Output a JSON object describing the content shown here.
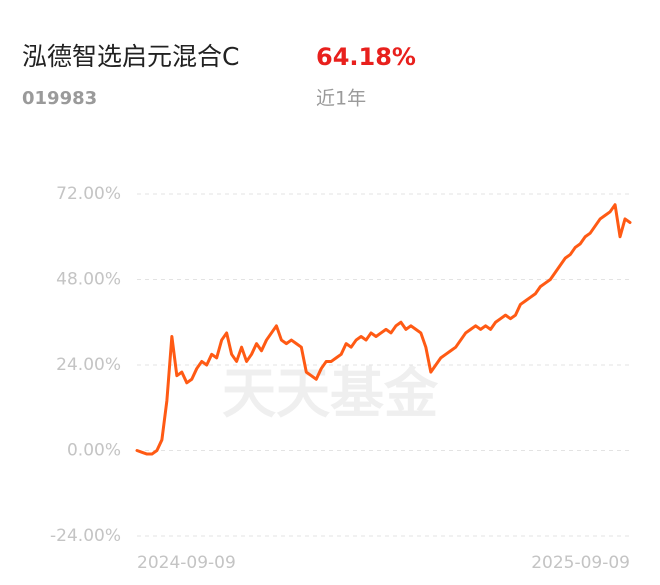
{
  "header": {
    "title": "泓德智选启元混合C",
    "return": "64.18%",
    "code": "019983",
    "period": "近1年"
  },
  "chart_data": {
    "type": "line",
    "watermark": "天天基金",
    "categories": [
      "2024-09-09",
      null,
      null,
      null,
      null,
      null,
      null,
      null,
      null,
      null,
      null,
      null,
      null,
      null,
      null,
      null,
      null,
      null,
      null,
      null,
      null,
      null,
      null,
      null,
      null,
      null,
      null,
      null,
      null,
      null,
      null,
      null,
      null,
      null,
      null,
      null,
      null,
      null,
      null,
      null,
      null,
      null,
      null,
      null,
      null,
      null,
      null,
      null,
      null,
      null,
      null,
      null,
      null,
      null,
      null,
      null,
      null,
      null,
      null,
      null,
      null,
      null,
      null,
      null,
      null,
      null,
      null,
      null,
      null,
      null,
      null,
      null,
      null,
      null,
      null,
      null,
      null,
      null,
      null,
      null,
      null,
      null,
      null,
      null,
      null,
      null,
      null,
      null,
      null,
      null,
      null,
      null,
      null,
      null,
      null,
      null,
      null,
      null,
      null,
      "2025-09-09"
    ],
    "series": [
      {
        "color": "#ff5a14",
        "values": [
          0,
          -0.5,
          -1,
          -1,
          0,
          3,
          14,
          32,
          21,
          22,
          19,
          20,
          23,
          25,
          24,
          27,
          26,
          31,
          33,
          27,
          25,
          29,
          25,
          27,
          30,
          28,
          31,
          33,
          35,
          31,
          30,
          31,
          30,
          29,
          22,
          21,
          20,
          23,
          25,
          25,
          26,
          27,
          30,
          29,
          31,
          32,
          31,
          33,
          32,
          33,
          34,
          33,
          35,
          36,
          34,
          35,
          34,
          33,
          29,
          22,
          24,
          26,
          27,
          28,
          29,
          31,
          33,
          34,
          35,
          34,
          35,
          34,
          36,
          37,
          38,
          37,
          38,
          41,
          42,
          43,
          44,
          46,
          47,
          48,
          50,
          52,
          54,
          55,
          57,
          58,
          60,
          61,
          63,
          65,
          66,
          67,
          69,
          60,
          65,
          64
        ]
      }
    ],
    "ylim": [
      -24,
      72
    ],
    "yticks": [
      {
        "value": -24,
        "label": "-24.00%"
      },
      {
        "value": 0,
        "label": "0.00%"
      },
      {
        "value": 24,
        "label": "24.00%"
      },
      {
        "value": 48,
        "label": "48.00%"
      },
      {
        "value": 72,
        "label": "72.00%"
      }
    ],
    "grid": true
  }
}
